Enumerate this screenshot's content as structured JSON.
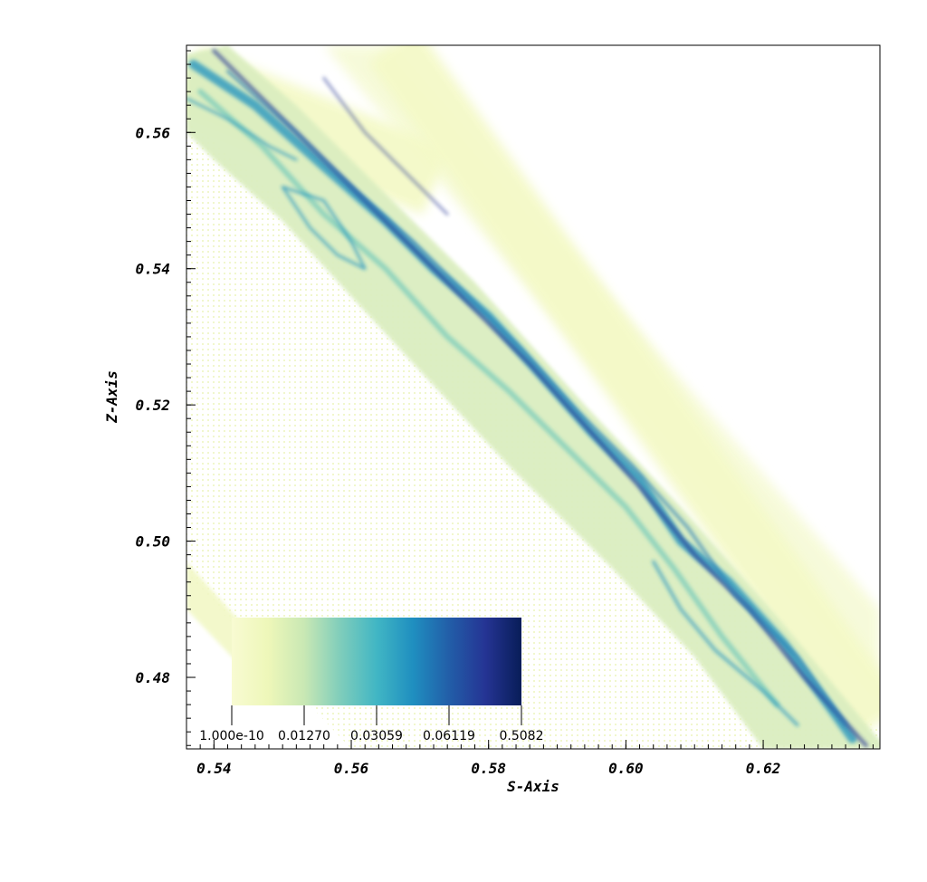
{
  "chart_data": {
    "type": "heatmap",
    "xlabel": "S-Axis",
    "ylabel": "Z-Axis",
    "xlim": [
      0.536,
      0.637
    ],
    "ylim": [
      0.4695,
      0.5728
    ],
    "x_ticks": [
      0.54,
      0.56,
      0.58,
      0.6,
      0.62
    ],
    "x_tick_labels": [
      "0.54",
      "0.56",
      "0.58",
      "0.60",
      "0.62"
    ],
    "y_ticks": [
      0.48,
      0.5,
      0.52,
      0.54,
      0.56
    ],
    "y_tick_labels": [
      "0.48",
      "0.50",
      "0.52",
      "0.54",
      "0.56"
    ],
    "minor_tick_step": 0.002,
    "grid": false,
    "colormap": "YlGnBu",
    "colorbar": {
      "scale": "log",
      "placement": "bottom-left",
      "tick_labels": [
        "1.000e-10",
        "0.01270",
        "0.03059",
        "0.06119",
        "0.5082"
      ],
      "colors": [
        "#f8fbd2",
        "#eef7b9",
        "#c9e8b4",
        "#7fcdbb",
        "#41b6c4",
        "#1f8fc0",
        "#225ea8",
        "#253494",
        "#081d58"
      ]
    },
    "field_description_bands": [
      {
        "s": [
          0.536,
          0.5724
        ],
        "z": [
          0.5678,
          0.5528
        ],
        "halfwidth": 0.0034
      },
      {
        "s": [
          0.566,
          0.637
        ],
        "z": [
          0.5728,
          0.4735
        ],
        "halfwidth": 0.0026
      }
    ],
    "colors": {
      "frame": "#000000",
      "background": "#ffffff",
      "pale": "#f4f9c8",
      "mid": "#7fcdbb",
      "blue": "#1d91c0",
      "dark": "#253494"
    }
  }
}
